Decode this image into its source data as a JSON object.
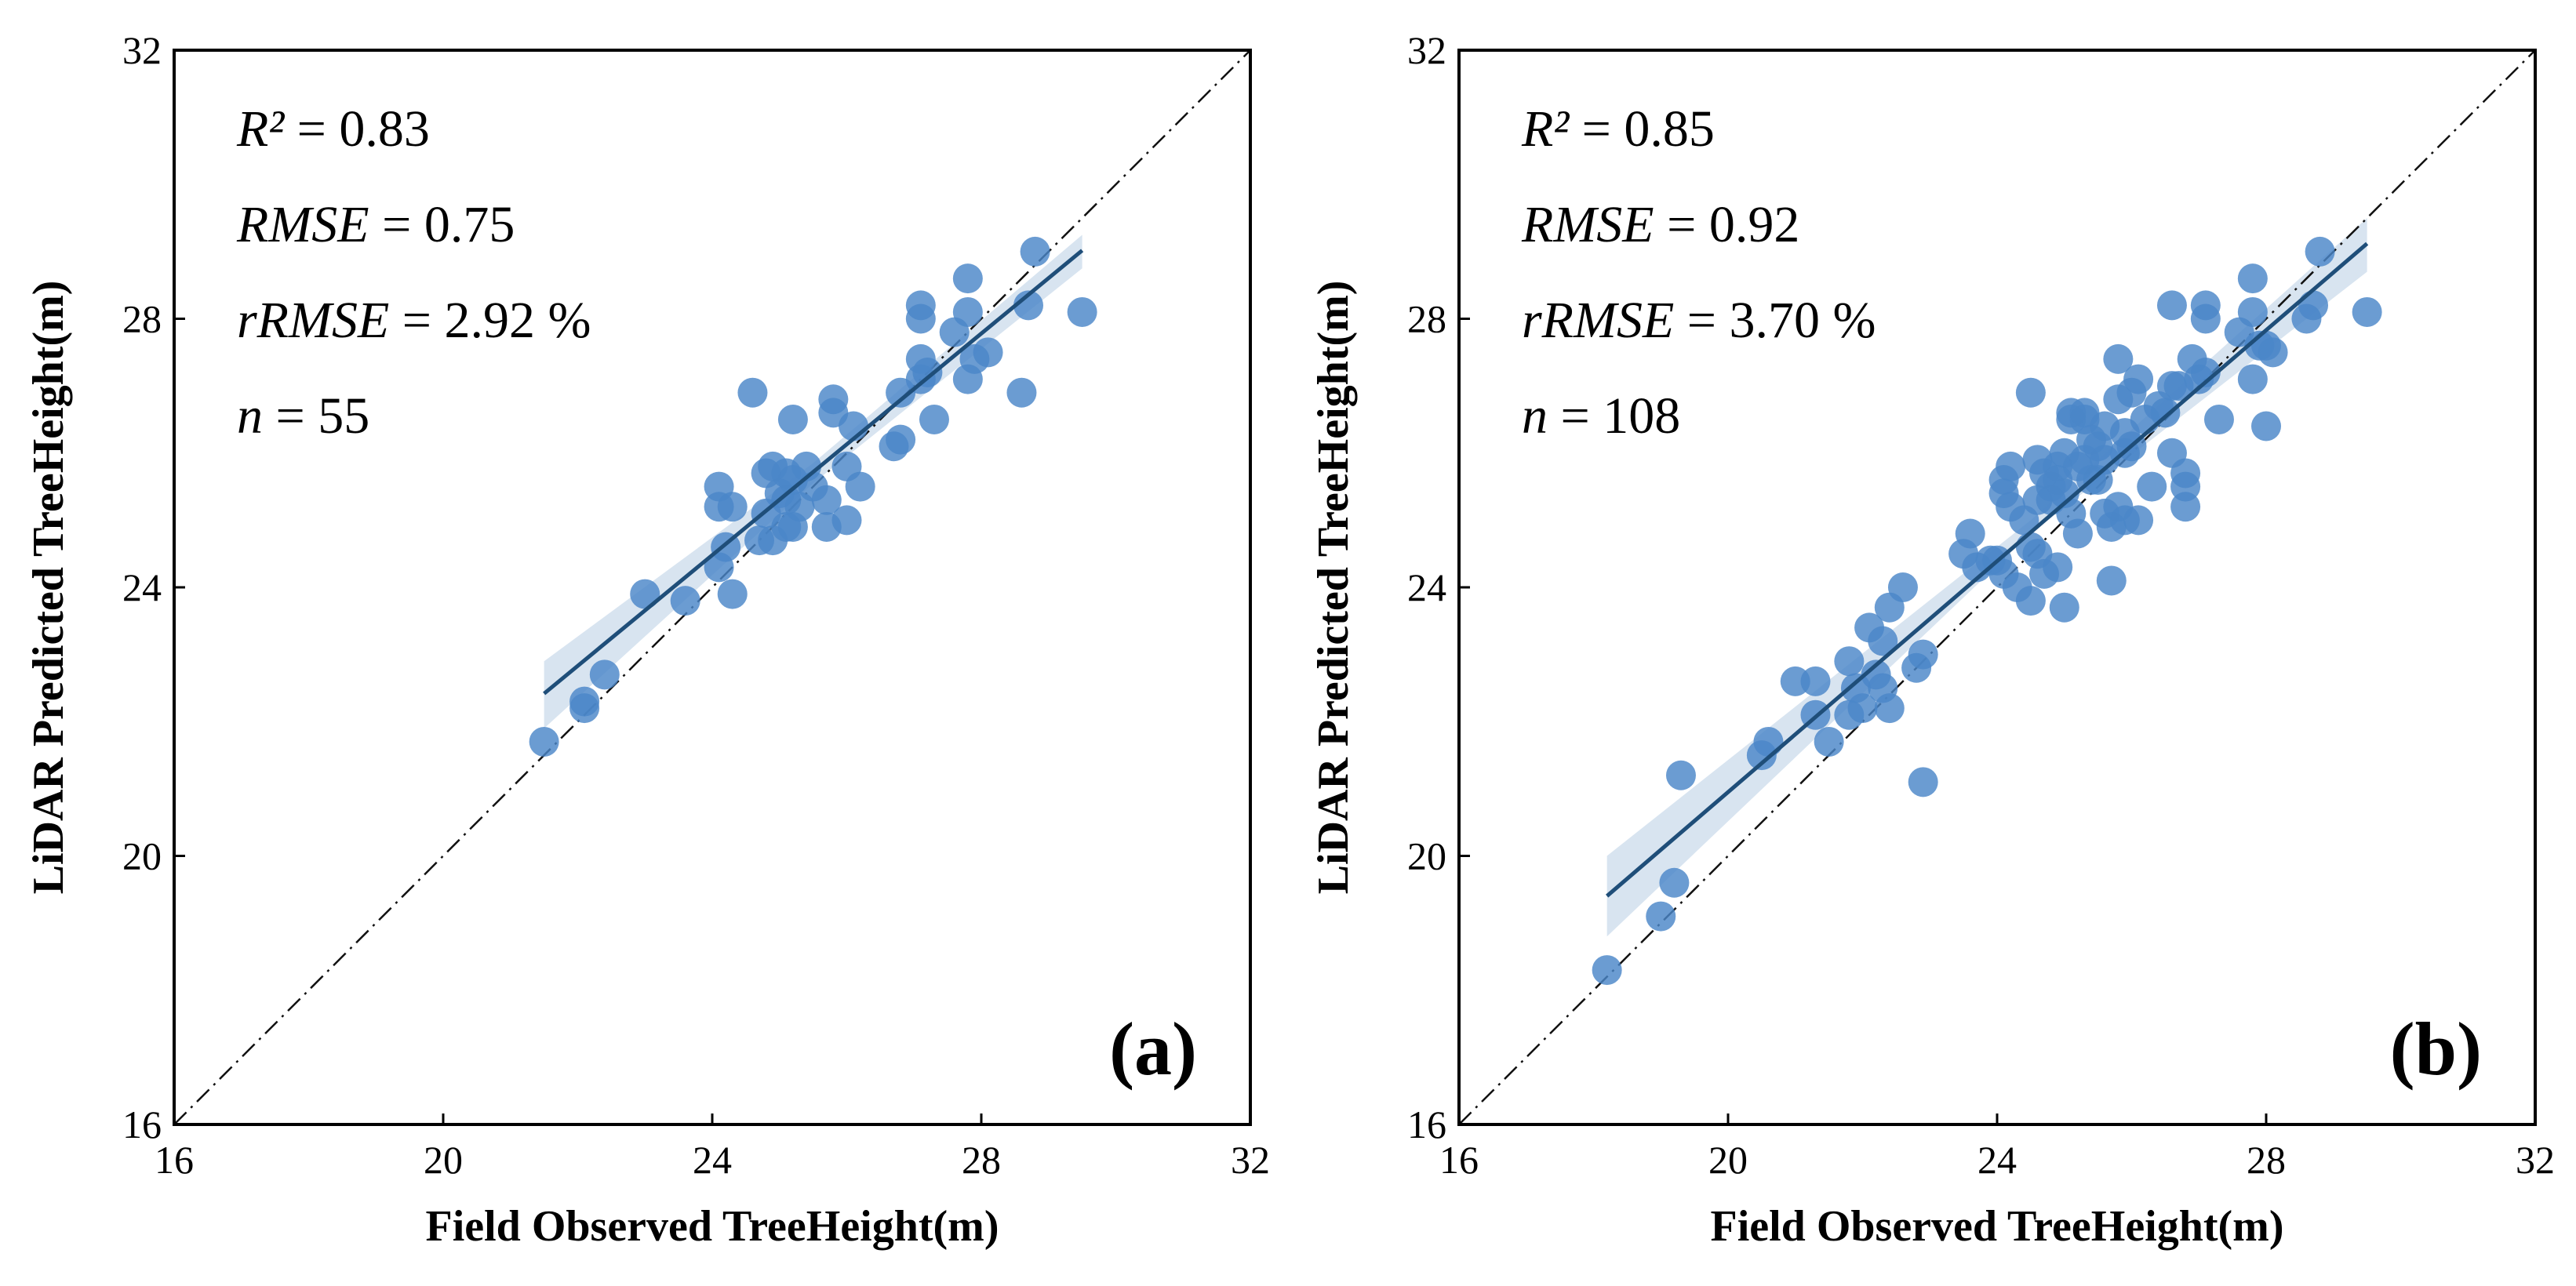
{
  "chart_data": [
    {
      "type": "scatter",
      "panel_label": "(a)",
      "xlabel": "Field Observed TreeHeight(m)",
      "ylabel": "LiDAR Predicted TreeHeight(m)",
      "xlim": [
        16,
        32
      ],
      "ylim": [
        16,
        32
      ],
      "xticks": [
        "16",
        "20",
        "24",
        "28",
        "32"
      ],
      "yticks": [
        "16",
        "20",
        "24",
        "28",
        "32"
      ],
      "stats": {
        "r2": {
          "label": "R²",
          "op": " = ",
          "value": "0.83"
        },
        "rmse": {
          "label": "RMSE",
          "op": " = ",
          "value": "0.75"
        },
        "rrmse": {
          "label": "rRMSE",
          "op": " = ",
          "value": "2.92 %"
        },
        "n": {
          "label": "n",
          "op": " = ",
          "value": "55"
        }
      },
      "regression": {
        "slope": 0.825,
        "intercept": 4.68,
        "x_range": [
          21.5,
          29.5
        ]
      },
      "confidence_band": {
        "x": [
          21.5,
          25.5,
          29.5
        ],
        "upper": [
          22.9,
          25.85,
          29.25
        ],
        "lower": [
          21.9,
          25.55,
          28.75
        ]
      },
      "reference_line": "1:1",
      "point_color": "#4a86c8",
      "line_color": "#1f4e79",
      "points": [
        [
          21.5,
          21.7
        ],
        [
          22.1,
          22.3
        ],
        [
          22.1,
          22.2
        ],
        [
          22.4,
          22.7
        ],
        [
          23.0,
          23.9
        ],
        [
          23.6,
          23.8
        ],
        [
          24.1,
          24.3
        ],
        [
          24.1,
          25.5
        ],
        [
          24.1,
          25.2
        ],
        [
          24.2,
          24.6
        ],
        [
          24.3,
          23.9
        ],
        [
          24.3,
          25.2
        ],
        [
          24.6,
          26.9
        ],
        [
          24.7,
          24.7
        ],
        [
          24.8,
          25.7
        ],
        [
          24.8,
          25.1
        ],
        [
          24.9,
          24.7
        ],
        [
          24.9,
          25.8
        ],
        [
          25.0,
          25.4
        ],
        [
          25.1,
          24.9
        ],
        [
          25.1,
          25.7
        ],
        [
          25.2,
          25.6
        ],
        [
          25.2,
          26.5
        ],
        [
          25.2,
          24.9
        ],
        [
          25.3,
          25.2
        ],
        [
          25.4,
          25.8
        ],
        [
          25.5,
          25.5
        ],
        [
          25.7,
          25.3
        ],
        [
          25.7,
          24.9
        ],
        [
          25.8,
          26.8
        ],
        [
          25.8,
          26.6
        ],
        [
          26.0,
          25.8
        ],
        [
          26.0,
          25.0
        ],
        [
          26.1,
          26.4
        ],
        [
          26.2,
          25.5
        ],
        [
          26.7,
          26.1
        ],
        [
          26.8,
          26.2
        ],
        [
          26.8,
          26.9
        ],
        [
          27.1,
          27.4
        ],
        [
          27.1,
          28.0
        ],
        [
          27.1,
          28.2
        ],
        [
          27.1,
          27.1
        ],
        [
          27.3,
          26.5
        ],
        [
          27.6,
          27.8
        ],
        [
          27.8,
          28.6
        ],
        [
          27.8,
          28.1
        ],
        [
          27.8,
          27.1
        ],
        [
          27.9,
          27.4
        ],
        [
          28.1,
          27.5
        ],
        [
          28.6,
          26.9
        ],
        [
          28.7,
          28.2
        ],
        [
          28.8,
          29.0
        ],
        [
          29.5,
          28.1
        ],
        [
          27.2,
          27.2
        ],
        [
          25.1,
          25.3
        ]
      ]
    },
    {
      "type": "scatter",
      "panel_label": "(b)",
      "xlabel": "Field Observed TreeHeight(m)",
      "ylabel": "LiDAR Predicted TreeHeight(m)",
      "xlim": [
        16,
        32
      ],
      "ylim": [
        16,
        32
      ],
      "xticks": [
        "16",
        "20",
        "24",
        "28",
        "32"
      ],
      "yticks": [
        "16",
        "20",
        "24",
        "28",
        "32"
      ],
      "stats": {
        "r2": {
          "label": "R²",
          "op": " = ",
          "value": "0.85"
        },
        "rmse": {
          "label": "RMSE",
          "op": " = ",
          "value": "0.92"
        },
        "rrmse": {
          "label": "rRMSE",
          "op": " = ",
          "value": "3.70 %"
        },
        "n": {
          "label": "n",
          "op": " = ",
          "value": "108"
        }
      },
      "regression": {
        "slope": 0.86,
        "intercept": 3.75,
        "x_range": [
          18.2,
          29.5
        ]
      },
      "confidence_band": {
        "x": [
          18.2,
          24.5,
          29.5
        ],
        "upper": [
          20.0,
          25.0,
          29.5
        ],
        "lower": [
          18.8,
          24.8,
          28.7
        ]
      },
      "reference_line": "1:1",
      "point_color": "#4a86c8",
      "line_color": "#1f4e79",
      "points": [
        [
          18.2,
          18.3
        ],
        [
          19.0,
          19.1
        ],
        [
          19.2,
          19.6
        ],
        [
          19.3,
          21.2
        ],
        [
          20.5,
          21.5
        ],
        [
          20.6,
          21.7
        ],
        [
          21.0,
          22.6
        ],
        [
          21.3,
          22.1
        ],
        [
          21.3,
          22.6
        ],
        [
          21.5,
          21.7
        ],
        [
          21.8,
          22.1
        ],
        [
          21.8,
          22.9
        ],
        [
          22.0,
          22.2
        ],
        [
          22.1,
          23.4
        ],
        [
          22.2,
          22.7
        ],
        [
          22.3,
          22.5
        ],
        [
          22.3,
          23.2
        ],
        [
          22.4,
          23.7
        ],
        [
          22.4,
          22.2
        ],
        [
          22.6,
          24.0
        ],
        [
          22.8,
          22.8
        ],
        [
          22.9,
          21.1
        ],
        [
          23.5,
          24.5
        ],
        [
          23.6,
          24.8
        ],
        [
          23.7,
          24.3
        ],
        [
          24.0,
          24.4
        ],
        [
          24.1,
          24.2
        ],
        [
          24.1,
          25.6
        ],
        [
          24.1,
          25.4
        ],
        [
          24.2,
          25.2
        ],
        [
          24.2,
          25.8
        ],
        [
          24.3,
          24.0
        ],
        [
          24.5,
          24.6
        ],
        [
          24.5,
          23.8
        ],
        [
          24.5,
          26.9
        ],
        [
          24.6,
          25.9
        ],
        [
          24.6,
          24.5
        ],
        [
          24.7,
          25.7
        ],
        [
          24.7,
          24.2
        ],
        [
          24.8,
          25.3
        ],
        [
          24.8,
          25.5
        ],
        [
          24.9,
          24.3
        ],
        [
          24.9,
          25.8
        ],
        [
          25.0,
          25.4
        ],
        [
          25.0,
          26.0
        ],
        [
          25.0,
          23.7
        ],
        [
          25.1,
          26.5
        ],
        [
          25.1,
          25.1
        ],
        [
          25.2,
          25.8
        ],
        [
          25.2,
          24.8
        ],
        [
          25.3,
          26.6
        ],
        [
          25.3,
          25.9
        ],
        [
          25.4,
          25.6
        ],
        [
          25.4,
          26.2
        ],
        [
          25.5,
          25.6
        ],
        [
          25.6,
          26.4
        ],
        [
          25.6,
          25.1
        ],
        [
          25.7,
          24.1
        ],
        [
          25.7,
          24.9
        ],
        [
          25.8,
          25.2
        ],
        [
          25.8,
          27.4
        ],
        [
          25.8,
          26.8
        ],
        [
          25.9,
          25.0
        ],
        [
          25.9,
          26.3
        ],
        [
          26.0,
          26.1
        ],
        [
          26.0,
          26.9
        ],
        [
          26.1,
          27.1
        ],
        [
          26.1,
          25.0
        ],
        [
          26.2,
          26.5
        ],
        [
          26.3,
          25.5
        ],
        [
          26.5,
          26.6
        ],
        [
          26.6,
          27.0
        ],
        [
          26.6,
          28.2
        ],
        [
          26.6,
          26.0
        ],
        [
          26.7,
          27.0
        ],
        [
          26.8,
          25.5
        ],
        [
          26.8,
          25.7
        ],
        [
          26.8,
          25.2
        ],
        [
          27.1,
          28.0
        ],
        [
          27.1,
          28.2
        ],
        [
          27.1,
          27.2
        ],
        [
          27.3,
          26.5
        ],
        [
          27.6,
          27.8
        ],
        [
          27.8,
          28.6
        ],
        [
          27.8,
          28.1
        ],
        [
          27.8,
          27.1
        ],
        [
          27.9,
          27.6
        ],
        [
          28.0,
          27.6
        ],
        [
          28.0,
          26.4
        ],
        [
          28.1,
          27.5
        ],
        [
          28.6,
          28.0
        ],
        [
          28.7,
          28.2
        ],
        [
          28.8,
          29.0
        ],
        [
          29.5,
          28.1
        ],
        [
          25.3,
          26.5
        ],
        [
          24.9,
          25.6
        ],
        [
          25.6,
          25.9
        ],
        [
          24.4,
          25.0
        ],
        [
          26.4,
          26.7
        ],
        [
          25.1,
          26.6
        ],
        [
          27.0,
          27.1
        ],
        [
          23.9,
          24.4
        ],
        [
          22.9,
          23.0
        ],
        [
          24.6,
          25.3
        ],
        [
          25.9,
          26.0
        ],
        [
          26.9,
          27.4
        ],
        [
          21.9,
          22.5
        ],
        [
          25.5,
          26.1
        ]
      ]
    }
  ]
}
